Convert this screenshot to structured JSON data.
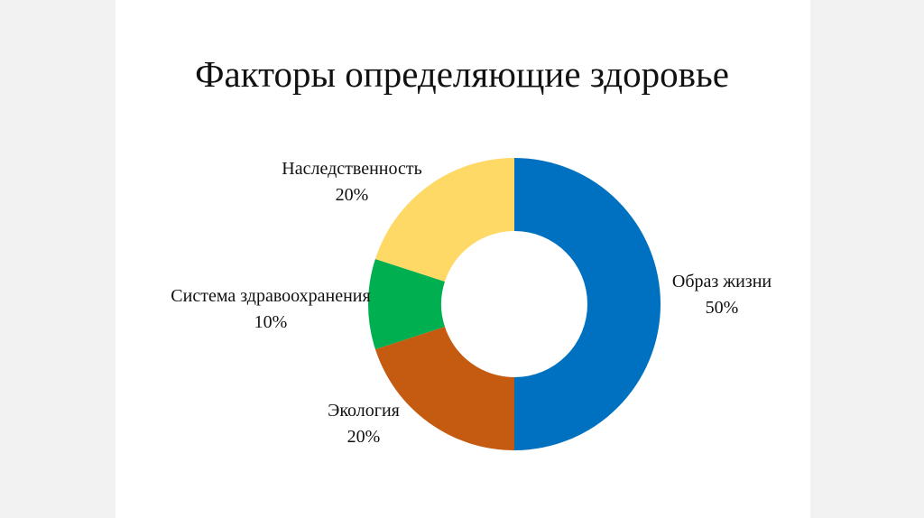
{
  "chart_data": {
    "type": "pie",
    "variant": "donut",
    "title": "Факторы определяющие здоровье",
    "categories": [
      "Образ жизни",
      "Экология",
      "Система здравоохранения",
      "Наследственность"
    ],
    "values": [
      50,
      20,
      10,
      20
    ],
    "data_labels": [
      "50%",
      "20%",
      "10%",
      "20%"
    ],
    "colors": [
      "#0070C0",
      "#C55A11",
      "#00B050",
      "#FFD966"
    ],
    "start_angle": "top, clockwise",
    "legend": "none"
  }
}
